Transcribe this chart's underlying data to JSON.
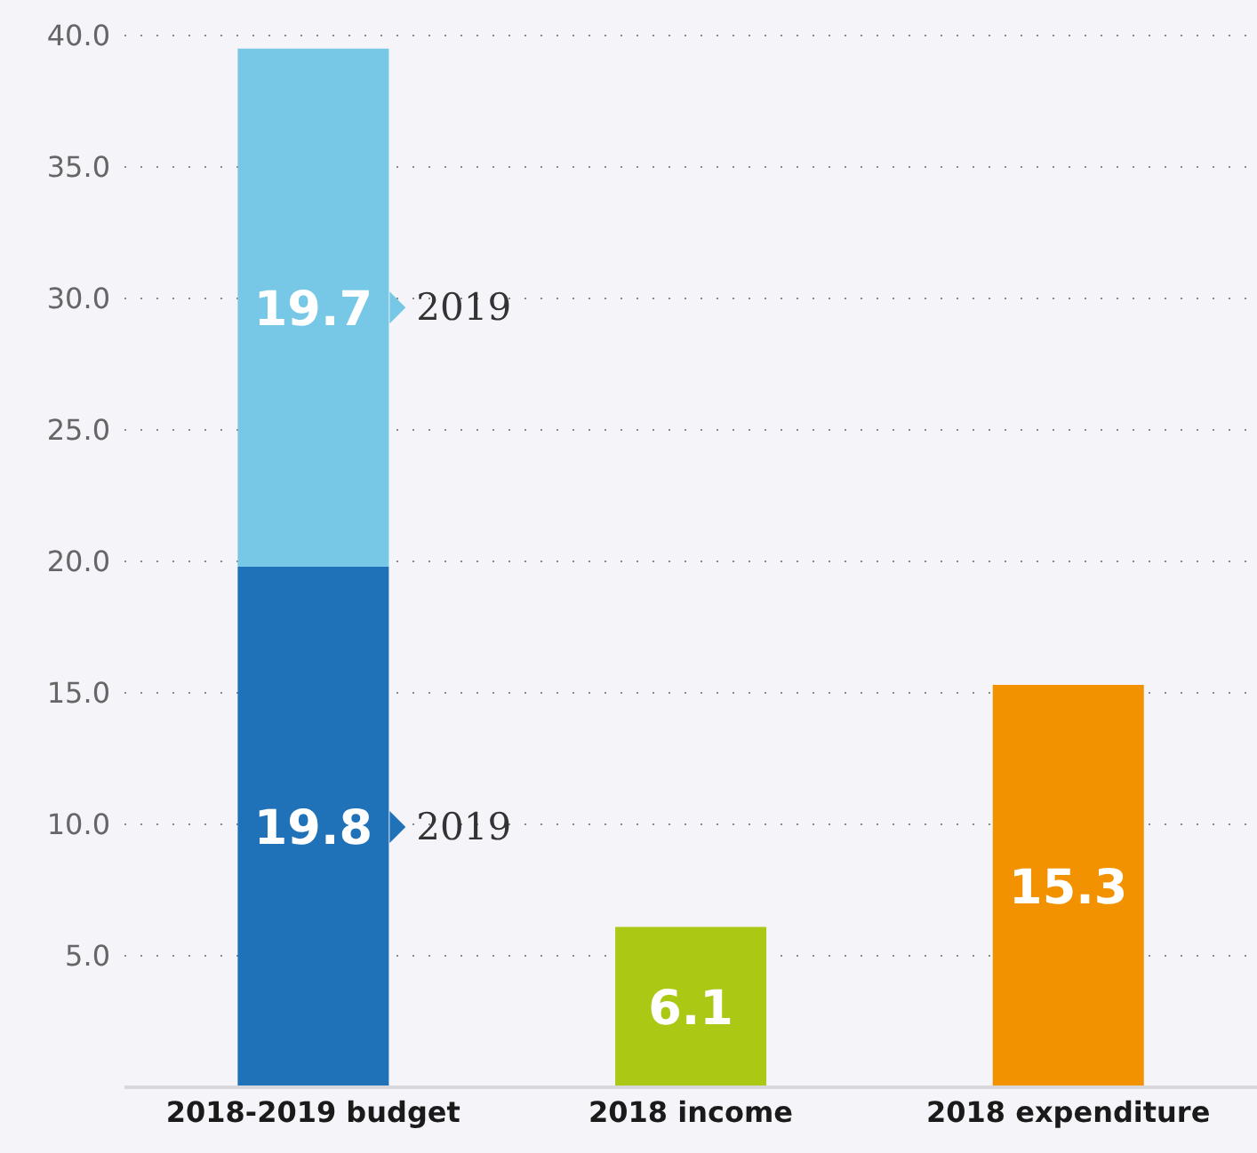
{
  "chart_data": {
    "type": "bar",
    "stacked": true,
    "categories": [
      "2018-2019 budget",
      "2018 income",
      "2018 expenditure"
    ],
    "series": [
      {
        "values": [
          19.8,
          6.1,
          15.3
        ],
        "colors": [
          "#1f71b8",
          "#aac814",
          "#f29200"
        ]
      },
      {
        "values": [
          19.7,
          null,
          null
        ],
        "color": "#76c8e6"
      }
    ],
    "data_labels": true,
    "ylim": [
      0,
      40
    ],
    "yticks": [
      {
        "value": 5,
        "label": "5.0"
      },
      {
        "value": 10,
        "label": "10.0"
      },
      {
        "value": 15,
        "label": "15.0"
      },
      {
        "value": 20,
        "label": "20.0"
      },
      {
        "value": 25,
        "label": "25.0"
      },
      {
        "value": 30,
        "label": "30.0"
      },
      {
        "value": 35,
        "label": "35.0"
      },
      {
        "value": 40,
        "label": "40.0"
      }
    ],
    "grid": "y",
    "annotations": [
      "2019",
      "2019"
    ]
  }
}
